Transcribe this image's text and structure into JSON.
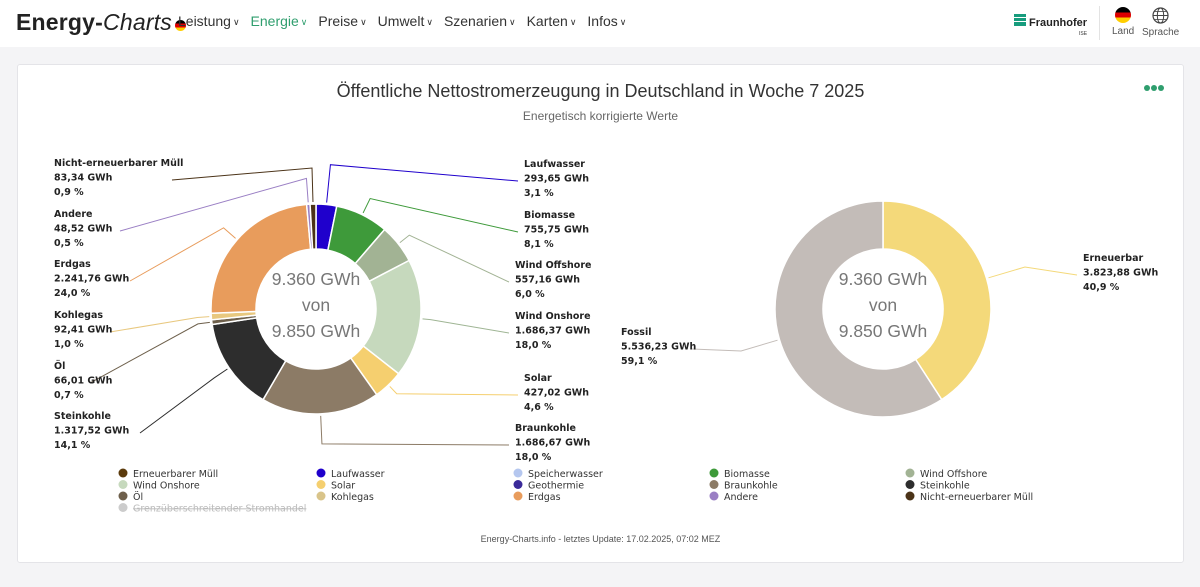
{
  "brand": {
    "part1": "Energy-",
    "part2": "Charts"
  },
  "nav": {
    "items": [
      {
        "label": "Leistung",
        "active": false
      },
      {
        "label": "Energie",
        "active": true
      },
      {
        "label": "Preise",
        "active": false
      },
      {
        "label": "Umwelt",
        "active": false
      },
      {
        "label": "Szenarien",
        "active": false
      },
      {
        "label": "Karten",
        "active": false
      },
      {
        "label": "Infos",
        "active": false
      }
    ],
    "logo_text": "Fraunhofer",
    "logo_sub": "ISE",
    "land_label": "Land",
    "sprache_label": "Sprache",
    "accent": "#2f9e6e"
  },
  "footer": "Energy-Charts.info - letztes Update: 17.02.2025, 07:02 MEZ",
  "chart_data": [
    {
      "type": "pie",
      "variant": "donut",
      "title": "Öffentliche Nettostromerzeugung in Deutschland in Woche 7 2025",
      "subtitle": "Energetisch korrigierte Werte",
      "center": {
        "line1": "9.360 GWh",
        "line2": "von",
        "line3": "9.850 GWh"
      },
      "slices": [
        {
          "name": "Laufwasser",
          "value": "293,65 GWh",
          "percent": "3,1 %",
          "num": 293.65,
          "color": "#1f00cc"
        },
        {
          "name": "Biomasse",
          "value": "755,75 GWh",
          "percent": "8,1 %",
          "num": 755.75,
          "color": "#3e9a3a"
        },
        {
          "name": "Wind Offshore",
          "value": "557,16 GWh",
          "percent": "6,0 %",
          "num": 557.16,
          "color": "#a2b394"
        },
        {
          "name": "Wind Onshore",
          "value": "1.686,37 GWh",
          "percent": "18,0 %",
          "num": 1686.37,
          "color": "#c6d9bd"
        },
        {
          "name": "Solar",
          "value": "427,02 GWh",
          "percent": "4,6 %",
          "num": 427.02,
          "color": "#f5cf6f"
        },
        {
          "name": "Braunkohle",
          "value": "1.686,67 GWh",
          "percent": "18,0 %",
          "num": 1686.67,
          "color": "#8c7b66"
        },
        {
          "name": "Steinkohle",
          "value": "1.317,52 GWh",
          "percent": "14,1 %",
          "num": 1317.52,
          "color": "#2d2d2d"
        },
        {
          "name": "Öl",
          "value": "66,01 GWh",
          "percent": "0,7 %",
          "num": 66.01,
          "color": "#6e604c"
        },
        {
          "name": "Kohlegas",
          "value": "92,41 GWh",
          "percent": "1,0 %",
          "num": 92.41,
          "color": "#e8c87f"
        },
        {
          "name": "Erdgas",
          "value": "2.241,76 GWh",
          "percent": "24,0 %",
          "num": 2241.76,
          "color": "#e89c5c"
        },
        {
          "name": "Andere",
          "value": "48,52 GWh",
          "percent": "0,5 %",
          "num": 48.52,
          "color": "#9a7fc4"
        },
        {
          "name": "Nicht-erneuerbarer Müll",
          "value": "83,34 GWh",
          "percent": "0,9 %",
          "num": 83.34,
          "color": "#4b3318"
        }
      ]
    },
    {
      "type": "pie",
      "variant": "donut",
      "center": {
        "line1": "9.360 GWh",
        "line2": "von",
        "line3": "9.850 GWh"
      },
      "slices": [
        {
          "name": "Erneuerbar",
          "value": "3.823,88 GWh",
          "percent": "40,9 %",
          "num": 3823.88,
          "color": "#f4d97a"
        },
        {
          "name": "Fossil",
          "value": "5.536,23 GWh",
          "percent": "59,1 %",
          "num": 5536.23,
          "color": "#c3bcb8"
        }
      ]
    }
  ],
  "legend": [
    {
      "label": "Erneuerbarer Müll",
      "color": "#5c3b0c",
      "disabled": false
    },
    {
      "label": "Laufwasser",
      "color": "#1f00cc",
      "disabled": false
    },
    {
      "label": "Speicherwasser",
      "color": "#b5c7ef",
      "disabled": false
    },
    {
      "label": "Biomasse",
      "color": "#3e9a3a",
      "disabled": false
    },
    {
      "label": "Wind Offshore",
      "color": "#a2b394",
      "disabled": false
    },
    {
      "label": "Wind Onshore",
      "color": "#c6d9bd",
      "disabled": false
    },
    {
      "label": "Solar",
      "color": "#f5cf6f",
      "disabled": false
    },
    {
      "label": "Geothermie",
      "color": "#3a2a99",
      "disabled": false
    },
    {
      "label": "Braunkohle",
      "color": "#8c7b66",
      "disabled": false
    },
    {
      "label": "Steinkohle",
      "color": "#2d2d2d",
      "disabled": false
    },
    {
      "label": "Öl",
      "color": "#6e604c",
      "disabled": false
    },
    {
      "label": "Kohlegas",
      "color": "#d9c48a",
      "disabled": false
    },
    {
      "label": "Erdgas",
      "color": "#e89c5c",
      "disabled": false
    },
    {
      "label": "Andere",
      "color": "#9a7fc4",
      "disabled": false
    },
    {
      "label": "Nicht-erneuerbarer Müll",
      "color": "#4b3318",
      "disabled": false
    },
    {
      "label": "Grenzüberschreitender Stromhandel",
      "color": "#cccccc",
      "disabled": true
    }
  ]
}
